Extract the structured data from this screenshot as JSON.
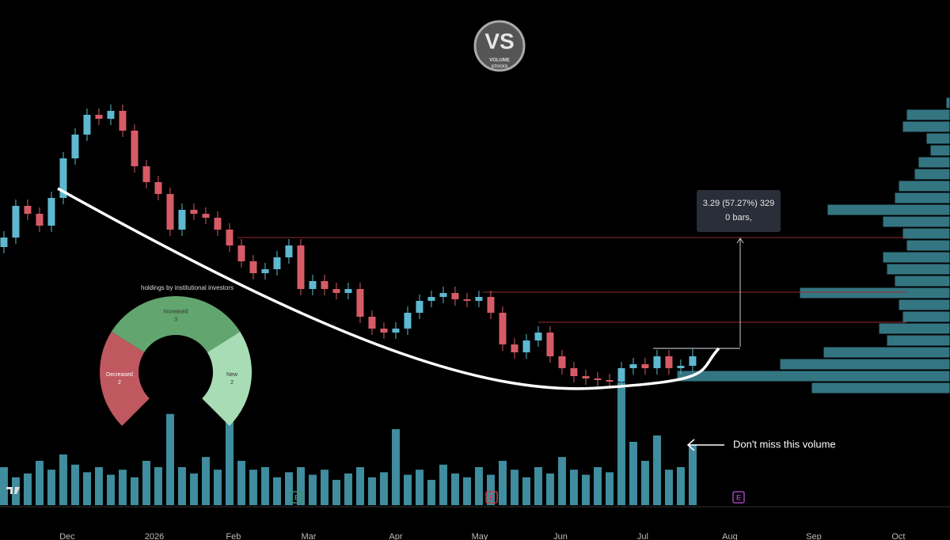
{
  "logo": {
    "mark": "VS",
    "line1": "VOLUME",
    "line2": "STOCKS"
  },
  "chart_data": [
    {
      "type": "candlestick",
      "xlim": [
        -0.33,
        79.67
      ],
      "xticks": [
        {
          "value": 5.33,
          "label": "Dec"
        },
        {
          "value": 12.67,
          "label": "2026"
        },
        {
          "value": 19.33,
          "label": "Feb"
        },
        {
          "value": 25.67,
          "label": "Mar"
        },
        {
          "value": 33,
          "label": "Apr"
        },
        {
          "value": 40.07,
          "label": "May"
        },
        {
          "value": 46.87,
          "label": "Jun"
        },
        {
          "value": 53.8,
          "label": "Jul"
        },
        {
          "value": 61.13,
          "label": "Aug"
        },
        {
          "value": 68.2,
          "label": "Sep"
        },
        {
          "value": 75.33,
          "label": "Oct"
        }
      ],
      "ylim": [
        0,
        68.2
      ],
      "up_color": "#5eb8d0",
      "down_color": "#d65b66",
      "ohlc": [
        [
          37.0,
          39.0,
          36.2,
          38.2
        ],
        [
          38.2,
          43.0,
          37.4,
          42.2
        ],
        [
          42.2,
          43.0,
          40.4,
          41.2
        ],
        [
          41.2,
          42.0,
          38.9,
          39.7
        ],
        [
          39.7,
          44.0,
          38.9,
          43.2
        ],
        [
          43.2,
          49.0,
          42.4,
          48.2
        ],
        [
          48.2,
          52.0,
          47.4,
          51.2
        ],
        [
          51.2,
          54.5,
          50.4,
          53.7
        ],
        [
          53.7,
          54.5,
          52.4,
          53.2
        ],
        [
          53.2,
          55.0,
          52.4,
          54.2
        ],
        [
          54.2,
          55.0,
          50.9,
          51.7
        ],
        [
          51.7,
          52.5,
          46.4,
          47.2
        ],
        [
          47.2,
          48.0,
          44.4,
          45.2
        ],
        [
          45.2,
          46.0,
          42.9,
          43.7
        ],
        [
          43.7,
          44.5,
          38.4,
          39.2
        ],
        [
          39.2,
          42.5,
          38.4,
          41.7
        ],
        [
          41.7,
          42.5,
          40.4,
          41.2
        ],
        [
          41.2,
          42.0,
          39.9,
          40.7
        ],
        [
          40.7,
          41.5,
          38.4,
          39.2
        ],
        [
          39.2,
          40.0,
          36.4,
          37.2
        ],
        [
          37.2,
          38.0,
          34.4,
          35.2
        ],
        [
          35.2,
          36.0,
          32.9,
          33.7
        ],
        [
          33.7,
          35.0,
          32.9,
          34.2
        ],
        [
          34.2,
          36.5,
          33.4,
          35.7
        ],
        [
          35.7,
          38.0,
          34.9,
          37.2
        ],
        [
          37.2,
          38.0,
          30.9,
          31.7
        ],
        [
          31.7,
          33.5,
          30.9,
          32.7
        ],
        [
          32.7,
          33.5,
          30.9,
          31.7
        ],
        [
          31.7,
          32.5,
          30.4,
          31.2
        ],
        [
          31.2,
          32.5,
          30.4,
          31.7
        ],
        [
          31.7,
          32.5,
          27.4,
          28.2
        ],
        [
          28.2,
          29.0,
          25.9,
          26.7
        ],
        [
          26.7,
          27.5,
          25.4,
          26.2
        ],
        [
          26.2,
          27.5,
          25.4,
          26.7
        ],
        [
          26.7,
          29.5,
          25.9,
          28.7
        ],
        [
          28.7,
          31.0,
          27.9,
          30.2
        ],
        [
          30.2,
          31.5,
          29.4,
          30.7
        ],
        [
          30.7,
          32.0,
          29.9,
          31.2
        ],
        [
          31.2,
          32.0,
          29.6,
          30.4
        ],
        [
          30.4,
          31.2,
          29.4,
          30.2
        ],
        [
          30.2,
          31.5,
          29.4,
          30.7
        ],
        [
          30.7,
          31.5,
          27.9,
          28.7
        ],
        [
          28.7,
          29.5,
          23.9,
          24.7
        ],
        [
          24.7,
          25.5,
          22.9,
          23.7
        ],
        [
          23.7,
          26.0,
          22.9,
          25.2
        ],
        [
          25.2,
          27.0,
          24.4,
          26.2
        ],
        [
          26.2,
          27.0,
          22.4,
          23.2
        ],
        [
          23.2,
          24.0,
          20.9,
          21.7
        ],
        [
          21.7,
          22.5,
          19.9,
          20.7
        ],
        [
          20.7,
          21.5,
          19.6,
          20.4
        ],
        [
          20.4,
          21.2,
          19.4,
          20.2
        ],
        [
          20.2,
          21.0,
          19.2,
          20.0
        ],
        [
          20.0,
          22.5,
          19.2,
          21.7
        ],
        [
          21.7,
          23.0,
          20.9,
          22.2
        ],
        [
          22.2,
          23.0,
          20.9,
          21.7
        ],
        [
          21.7,
          24.0,
          20.9,
          23.2
        ],
        [
          23.2,
          24.0,
          20.9,
          21.7
        ],
        [
          21.7,
          22.8,
          20.9,
          22.0
        ],
        [
          22.0,
          24.2,
          21.2,
          23.2
        ]
      ],
      "volume": {
        "color": "#3f8d9e",
        "ylim": [
          0,
          100
        ],
        "values": [
          30,
          22,
          25,
          35,
          28,
          40,
          32,
          26,
          30,
          24,
          28,
          22,
          35,
          30,
          72,
          30,
          25,
          38,
          28,
          92,
          35,
          28,
          30,
          22,
          26,
          30,
          24,
          28,
          20,
          25,
          30,
          22,
          26,
          60,
          24,
          28,
          20,
          32,
          25,
          22,
          30,
          24,
          35,
          28,
          22,
          30,
          25,
          38,
          28,
          24,
          30,
          26,
          97,
          50,
          35,
          55,
          28,
          30,
          48
        ]
      },
      "profile": {
        "color": "#3d8a99",
        "xlim": [
          0,
          400
        ],
        "levels": [
          55.2,
          53.7,
          52.2,
          50.7,
          49.2,
          47.7,
          46.2,
          44.7,
          43.2,
          41.7,
          40.2,
          38.7,
          37.2,
          35.7,
          34.2,
          32.7,
          31.2,
          29.7,
          28.2,
          26.7,
          25.2,
          23.7,
          22.2,
          20.7,
          19.2
        ],
        "values": [
          5,
          55,
          60,
          30,
          25,
          40,
          45,
          65,
          70,
          155,
          85,
          60,
          55,
          85,
          80,
          70,
          190,
          65,
          60,
          90,
          80,
          160,
          215,
          345,
          175
        ]
      },
      "levels": [
        {
          "value": 38.2,
          "start": 19.67,
          "color": "#9a2c2c"
        },
        {
          "value": 31.3,
          "start": 40.33,
          "color": "#9a2c2c"
        },
        {
          "value": 27.5,
          "start": 45.0,
          "color": "#9a2c2c"
        },
        {
          "value": 24.2,
          "start": 54.67,
          "color": "#e0e0e0"
        }
      ],
      "earnings": [
        {
          "x": 24.67,
          "label": "E",
          "color": "#3f8d6a"
        },
        {
          "x": 41.07,
          "label": "E",
          "color": "#c0404a"
        },
        {
          "x": 61.87,
          "label": "E",
          "color": "#a040c0"
        }
      ],
      "measure": {
        "line1": "3.29 (57.27%) 329",
        "line2": "0 bars,"
      },
      "annotation": "Don't miss this volume"
    },
    {
      "type": "pie",
      "title": "holdings by institutional investors",
      "series": [
        {
          "name": "Decreased",
          "color": "#c0585f",
          "value": 2
        },
        {
          "name": "Increased",
          "color": "#62a56e",
          "value": 3
        },
        {
          "name": "New",
          "color": "#a8dcb4",
          "value": 2
        }
      ]
    }
  ]
}
